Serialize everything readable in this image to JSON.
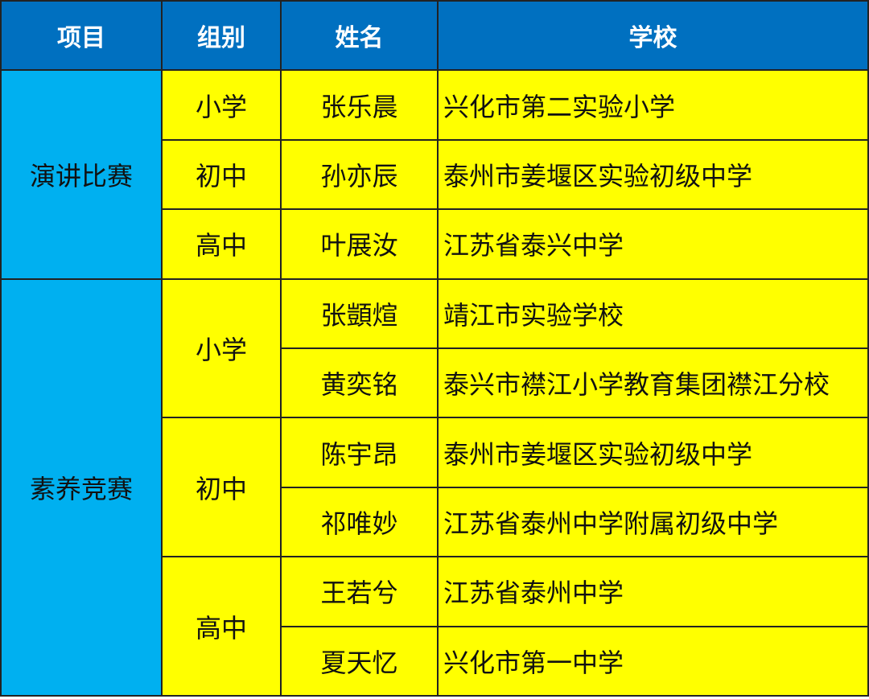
{
  "table": {
    "header": [
      "项目",
      "组别",
      "姓名",
      "学校"
    ],
    "groups": [
      {
        "project": "演讲比赛",
        "levels": [
          {
            "level": "小学",
            "students": [
              {
                "name": "张乐晨",
                "school": "兴化市第二实验小学"
              }
            ]
          },
          {
            "level": "初中",
            "students": [
              {
                "name": "孙亦辰",
                "school": "泰州市姜堰区实验初级中学"
              }
            ]
          },
          {
            "level": "高中",
            "students": [
              {
                "name": "叶展汝",
                "school": "江苏省泰兴中学"
              }
            ]
          }
        ]
      },
      {
        "project": "素养竞赛",
        "levels": [
          {
            "level": "小学",
            "students": [
              {
                "name": "张顗煊",
                "school": "靖江市实验学校"
              },
              {
                "name": "黄奕铭",
                "school": "泰兴市襟江小学教育集团襟江分校"
              }
            ]
          },
          {
            "level": "初中",
            "students": [
              {
                "name": "陈宇昂",
                "school": "泰州市姜堰区实验初级中学"
              },
              {
                "name": "祁唯妙",
                "school": "江苏省泰州中学附属初级中学"
              }
            ]
          },
          {
            "level": "高中",
            "students": [
              {
                "name": "王若兮",
                "school": "江苏省泰州中学"
              },
              {
                "name": "夏天忆",
                "school": "兴化市第一中学"
              }
            ]
          }
        ]
      }
    ]
  }
}
